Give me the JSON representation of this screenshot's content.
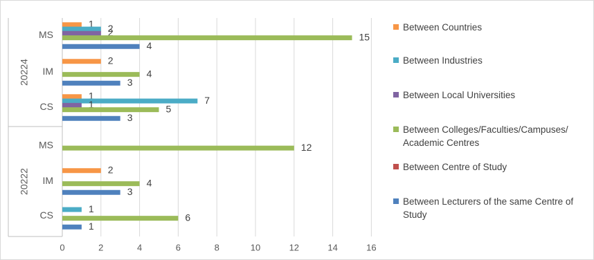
{
  "chart_data": {
    "type": "bar",
    "orientation": "horizontal",
    "x_ticks": [
      0,
      2,
      4,
      6,
      8,
      10,
      12,
      14,
      16
    ],
    "xlim": [
      0,
      16
    ],
    "grid": "vertical",
    "legend_position": "right",
    "colors": {
      "countries": "#F79646",
      "industries": "#4BACC6",
      "local_universities": "#8064A2",
      "colleges": "#9BBB59",
      "centre_of_study": "#C0504D",
      "lecturers": "#4F81BD"
    },
    "legend": [
      {
        "key": "countries",
        "label": "Between Countries"
      },
      {
        "key": "industries",
        "label": "Between Industries"
      },
      {
        "key": "local_universities",
        "label": "Between Local Universities"
      },
      {
        "key": "colleges",
        "label": "Between Colleges/Faculties/Campuses/ Academic Centres"
      },
      {
        "key": "centre_of_study",
        "label": "Between Centre of Study"
      },
      {
        "key": "lecturers",
        "label": "Between Lecturers of the same Centre of Study"
      }
    ],
    "year_groups": [
      {
        "year": "20224",
        "programs": [
          {
            "name": "MS",
            "values": {
              "countries": 1,
              "industries": 2,
              "local_universities": 2,
              "colleges": 15,
              "centre_of_study": null,
              "lecturers": 4
            }
          },
          {
            "name": "IM",
            "values": {
              "countries": 2,
              "industries": null,
              "local_universities": null,
              "colleges": 4,
              "centre_of_study": null,
              "lecturers": 3
            }
          },
          {
            "name": "CS",
            "values": {
              "countries": 1,
              "industries": 7,
              "local_universities": 1,
              "colleges": 5,
              "centre_of_study": null,
              "lecturers": 3
            }
          }
        ]
      },
      {
        "year": "20222",
        "programs": [
          {
            "name": "MS",
            "values": {
              "countries": null,
              "industries": null,
              "local_universities": null,
              "colleges": 12,
              "centre_of_study": null,
              "lecturers": null
            }
          },
          {
            "name": "IM",
            "values": {
              "countries": 2,
              "industries": null,
              "local_universities": null,
              "colleges": 4,
              "centre_of_study": null,
              "lecturers": 3
            }
          },
          {
            "name": "CS",
            "values": {
              "countries": null,
              "industries": 1,
              "local_universities": null,
              "colleges": 6,
              "centre_of_study": null,
              "lecturers": 1
            }
          }
        ]
      }
    ]
  }
}
